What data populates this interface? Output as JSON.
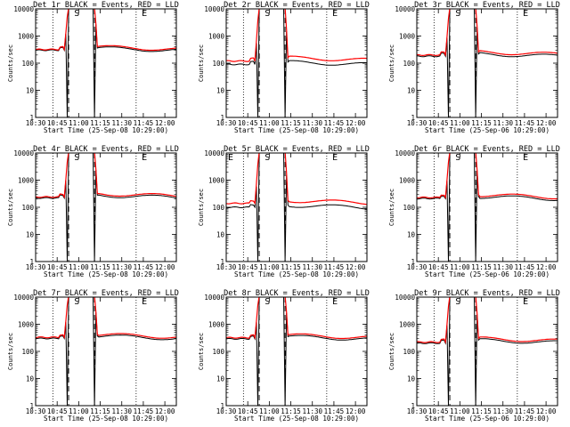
{
  "figure": {
    "x_tick_labels": [
      "10:30",
      "10:45",
      "11:00",
      "11:15",
      "11:30",
      "11:45",
      "12:00"
    ],
    "x_ticks_minutes": [
      0,
      15,
      30,
      45,
      60,
      75,
      90
    ],
    "x_range_minutes": [
      0,
      98
    ],
    "y_range": [
      1,
      10000
    ],
    "y_scale": "log",
    "y_tick_values": [
      1,
      10,
      100,
      1000,
      10000
    ],
    "y_tick_labels": [
      "1",
      "10",
      "100",
      "1000",
      "10000"
    ],
    "ylabel": "Counts/sec",
    "xlabel_date_a": "Start Time (25-Sep-08 10:29:00)",
    "xlabel_date_b": "Start Time (25-Sep-06 10:29:00)",
    "series_colors": {
      "events": "#000000",
      "lld": "#ff0000"
    },
    "marker_labels": {
      "start": "S",
      "end": "E"
    }
  },
  "chart_data": [
    {
      "type": "line",
      "title": "Det 1r BLACK = Events, RED = LLD",
      "xlabel": "Start Time (25-Sep-08 10:29:00)",
      "baseline_events": 300,
      "baseline_lld": 320,
      "post_events": 360,
      "post_lld": 400,
      "flare_start_min": 20,
      "flare_end_min": 41,
      "vlines_dotted": [
        12,
        70
      ],
      "vlines_dashed": [
        23,
        41
      ],
      "markers": {
        "S": 25,
        "E": 72
      },
      "marker_E_at_left": false
    },
    {
      "type": "line",
      "title": "Det 2r BLACK = Events, RED = LLD",
      "xlabel": "Start Time (25-Sep-08 10:29:00)",
      "baseline_events": 90,
      "baseline_lld": 120,
      "post_events": 110,
      "post_lld": 160,
      "flare_start_min": 20,
      "flare_end_min": 41,
      "vlines_dotted": [
        12,
        70
      ],
      "vlines_dashed": [
        23,
        41
      ],
      "markers": {
        "S": 25,
        "E": 72
      },
      "marker_E_at_left": false
    },
    {
      "type": "line",
      "title": "Det 3r BLACK = Events, RED = LLD",
      "xlabel": "Start Time (25-Sep-06 10:29:00)",
      "baseline_events": 180,
      "baseline_lld": 200,
      "post_events": 220,
      "post_lld": 260,
      "flare_start_min": 20,
      "flare_end_min": 41,
      "vlines_dotted": [
        12,
        70
      ],
      "vlines_dashed": [
        23,
        41
      ],
      "markers": {
        "S": 25,
        "E": 72
      },
      "marker_E_at_left": false
    },
    {
      "type": "line",
      "title": "Det 4r BLACK = Events, RED = LLD",
      "xlabel": "Start Time (25-Sep-08 10:29:00)",
      "baseline_events": 220,
      "baseline_lld": 240,
      "post_events": 280,
      "post_lld": 320,
      "flare_start_min": 20,
      "flare_end_min": 41,
      "vlines_dotted": [
        12,
        70
      ],
      "vlines_dashed": [
        23,
        41
      ],
      "markers": {
        "S": 25,
        "E": 72
      },
      "marker_E_at_left": false
    },
    {
      "type": "line",
      "title": "Det 5r BLACK = Events, RED = LLD",
      "xlabel": "Start Time (25-Sep-08 10:29:00)",
      "baseline_events": 100,
      "baseline_lld": 140,
      "post_events": 120,
      "post_lld": 180,
      "flare_start_min": 20,
      "flare_end_min": 41,
      "vlines_dotted": [
        12,
        70
      ],
      "vlines_dashed": [
        23,
        41
      ],
      "markers": {
        "S": 25,
        "E": 72
      },
      "marker_E_at_left": true
    },
    {
      "type": "line",
      "title": "Det 6r BLACK = Events, RED = LLD",
      "xlabel": "Start Time (25-Sep-06 10:29:00)",
      "baseline_events": 210,
      "baseline_lld": 230,
      "post_events": 250,
      "post_lld": 290,
      "flare_start_min": 20,
      "flare_end_min": 41,
      "vlines_dotted": [
        12,
        70
      ],
      "vlines_dashed": [
        23,
        41
      ],
      "markers": {
        "S": 25,
        "E": 72
      },
      "marker_E_at_left": false
    },
    {
      "type": "line",
      "title": "Det 7r BLACK = Events, RED = LLD",
      "xlabel": "Start Time (25-Sep-08 10:29:00)",
      "baseline_events": 300,
      "baseline_lld": 330,
      "post_events": 370,
      "post_lld": 420,
      "flare_start_min": 20,
      "flare_end_min": 41,
      "vlines_dotted": [
        12,
        70
      ],
      "vlines_dashed": [
        23,
        41
      ],
      "markers": {
        "S": 25,
        "E": 72
      },
      "marker_E_at_left": false
    },
    {
      "type": "line",
      "title": "Det 8r BLACK = Events, RED = LLD",
      "xlabel": "Start Time (25-Sep-08 10:29:00)",
      "baseline_events": 290,
      "baseline_lld": 320,
      "post_events": 350,
      "post_lld": 400,
      "flare_start_min": 20,
      "flare_end_min": 41,
      "vlines_dotted": [
        12,
        70
      ],
      "vlines_dashed": [
        23,
        41
      ],
      "markers": {
        "S": 25,
        "E": 72
      },
      "marker_E_at_left": false
    },
    {
      "type": "line",
      "title": "Det 9r BLACK = Events, RED = LLD",
      "xlabel": "Start Time (25-Sep-06 10:29:00)",
      "baseline_events": 200,
      "baseline_lld": 220,
      "post_events": 260,
      "post_lld": 300,
      "flare_start_min": 20,
      "flare_end_min": 41,
      "vlines_dotted": [
        12,
        70
      ],
      "vlines_dashed": [
        23,
        41
      ],
      "markers": {
        "S": 25,
        "E": 72
      },
      "marker_E_at_left": false
    }
  ]
}
